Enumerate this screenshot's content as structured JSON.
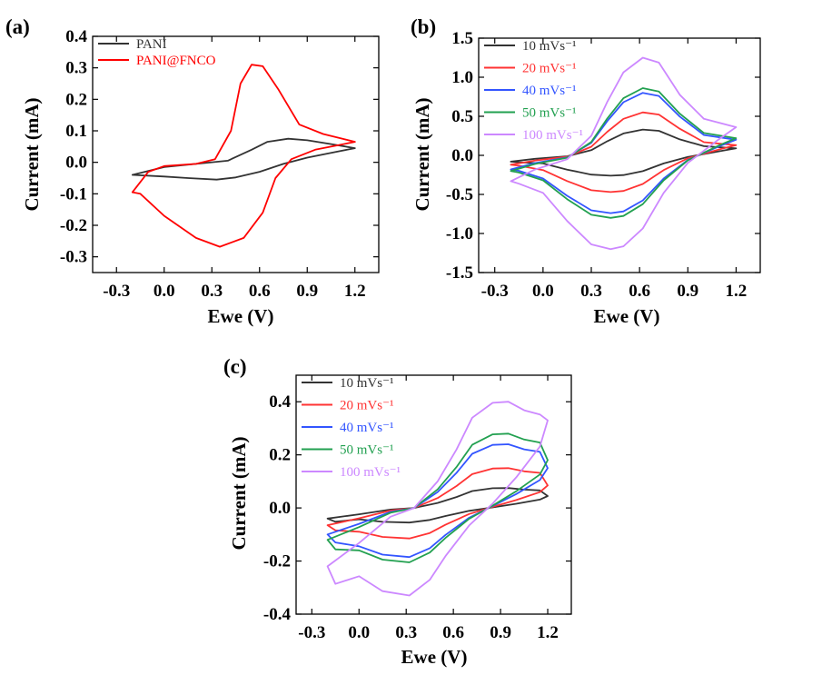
{
  "figure": {
    "panel_labels": [
      "(a)",
      "(b)",
      "(c)"
    ]
  },
  "chart_data": [
    {
      "panel": "(a)",
      "type": "line",
      "xlabel": "Ewe (V)",
      "ylabel": "Current (mA)",
      "xlim": [
        -0.45,
        1.35
      ],
      "ylim": [
        -0.35,
        0.4
      ],
      "xticks": [
        "-0.3",
        "0.0",
        "0.3",
        "0.6",
        "0.9",
        "1.2"
      ],
      "yticks": [
        "0.4",
        "0.3",
        "0.2",
        "0.1",
        "0.0",
        "-0.1",
        "-0.2",
        "-0.3"
      ],
      "grid": false,
      "legend_position": "top-left",
      "series": [
        {
          "name": "PANI",
          "color": "#333333",
          "points": [
            [
              -0.2,
              -0.04
            ],
            [
              0.0,
              -0.015
            ],
            [
              0.2,
              -0.005
            ],
            [
              0.4,
              0.005
            ],
            [
              0.55,
              0.04
            ],
            [
              0.65,
              0.065
            ],
            [
              0.78,
              0.075
            ],
            [
              0.9,
              0.07
            ],
            [
              1.05,
              0.058
            ],
            [
              1.2,
              0.045
            ],
            [
              1.1,
              0.035
            ],
            [
              0.9,
              0.015
            ],
            [
              0.75,
              -0.005
            ],
            [
              0.6,
              -0.03
            ],
            [
              0.45,
              -0.048
            ],
            [
              0.33,
              -0.055
            ],
            [
              0.15,
              -0.05
            ],
            [
              0.0,
              -0.045
            ],
            [
              -0.2,
              -0.04
            ]
          ]
        },
        {
          "name": "PANI@FNCO",
          "color": "#ff0000",
          "points": [
            [
              -0.2,
              -0.095
            ],
            [
              -0.1,
              -0.03
            ],
            [
              0.0,
              -0.012
            ],
            [
              0.2,
              -0.005
            ],
            [
              0.32,
              0.01
            ],
            [
              0.42,
              0.1
            ],
            [
              0.48,
              0.25
            ],
            [
              0.55,
              0.31
            ],
            [
              0.62,
              0.305
            ],
            [
              0.72,
              0.23
            ],
            [
              0.85,
              0.12
            ],
            [
              1.0,
              0.09
            ],
            [
              1.2,
              0.065
            ],
            [
              1.1,
              0.055
            ],
            [
              0.95,
              0.04
            ],
            [
              0.8,
              0.01
            ],
            [
              0.7,
              -0.05
            ],
            [
              0.62,
              -0.16
            ],
            [
              0.5,
              -0.24
            ],
            [
              0.35,
              -0.268
            ],
            [
              0.2,
              -0.24
            ],
            [
              0.0,
              -0.17
            ],
            [
              -0.15,
              -0.1
            ],
            [
              -0.2,
              -0.095
            ]
          ]
        }
      ]
    },
    {
      "panel": "(b)",
      "type": "line",
      "xlabel": "Ewe (V)",
      "ylabel": "Current (mA)",
      "xlim": [
        -0.4,
        1.35
      ],
      "ylim": [
        -1.5,
        1.5
      ],
      "xticks": [
        "-0.3",
        "0.0",
        "0.3",
        "0.6",
        "0.9",
        "1.2"
      ],
      "yticks": [
        "1.5",
        "1.0",
        "0.5",
        "0.0",
        "-0.5",
        "-1.0",
        "-1.5"
      ],
      "grid": false,
      "legend_position": "top-left",
      "series": [
        {
          "name": "10 mVs⁻¹",
          "color": "#333333",
          "peak": 0.33,
          "trough": -0.26,
          "end": 0.09,
          "start": -0.08
        },
        {
          "name": "20 mVs⁻¹",
          "color": "#ff3333",
          "peak": 0.55,
          "trough": -0.47,
          "end": 0.13,
          "start": -0.12
        },
        {
          "name": "40 mVs⁻¹",
          "color": "#3355ff",
          "peak": 0.8,
          "trough": -0.74,
          "end": 0.2,
          "start": -0.18
        },
        {
          "name": "50 mVs⁻¹",
          "color": "#22a050",
          "peak": 0.86,
          "trough": -0.8,
          "end": 0.22,
          "start": -0.2
        },
        {
          "name": "100 mVs⁻¹",
          "color": "#cc88ff",
          "peak": 1.25,
          "trough": -1.2,
          "end": 0.36,
          "start": -0.33
        }
      ]
    },
    {
      "panel": "(c)",
      "type": "line",
      "xlabel": "Ewe (V)",
      "ylabel": "Current (mA)",
      "xlim": [
        -0.4,
        1.35
      ],
      "ylim": [
        -0.4,
        0.5
      ],
      "xticks": [
        "-0.3",
        "0.0",
        "0.3",
        "0.6",
        "0.9",
        "1.2"
      ],
      "yticks": [
        "0.4",
        "0.2",
        "0.0",
        "-0.2",
        "-0.4"
      ],
      "grid": false,
      "legend_position": "top-left",
      "series": [
        {
          "name": "10 mVs⁻¹",
          "color": "#333333",
          "peak": 0.075,
          "trough": -0.055,
          "end": 0.045,
          "start": -0.04
        },
        {
          "name": "20 mVs⁻¹",
          "color": "#ff3333",
          "peak": 0.15,
          "trough": -0.115,
          "end": 0.085,
          "start": -0.065
        },
        {
          "name": "40 mVs⁻¹",
          "color": "#3355ff",
          "peak": 0.24,
          "trough": -0.185,
          "end": 0.15,
          "start": -0.1
        },
        {
          "name": "50 mVs⁻¹",
          "color": "#22a050",
          "peak": 0.28,
          "trough": -0.205,
          "end": 0.18,
          "start": -0.12
        },
        {
          "name": "100 mVs⁻¹",
          "color": "#cc88ff",
          "peak": 0.4,
          "trough": -0.33,
          "end": 0.33,
          "start": -0.22
        }
      ]
    }
  ]
}
